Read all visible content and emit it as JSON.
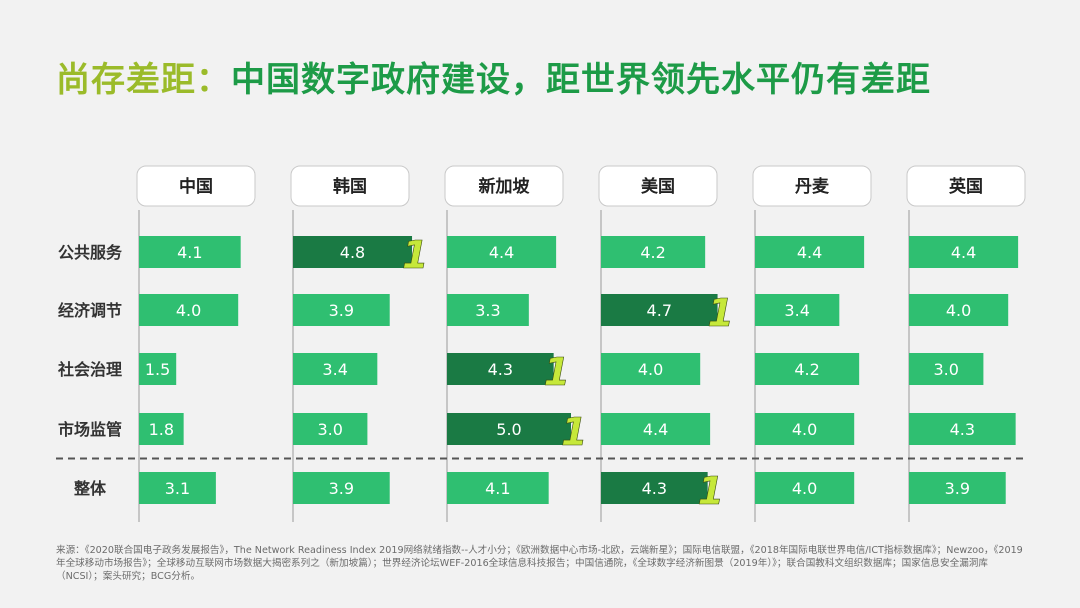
{
  "title_part1": "尚存差距：",
  "title_part2": "中国数字政府建设，距世界领先水平仍有差距",
  "source_note": "来源：《2020联合国电子政务发展报告》，The  Network  Readiness  Index  2019网络就绪指数--人才小分；《欧洲数据中心市场-北欧，云端新星》；国际电信联盟，《2018年国际电联世界电信/ICT指标数据库》；Newzoo，《2019年全球移动市场报告》；全球移动互联网市场数据大揭密系列之（新加坡篇）；世界经济论坛WEF-2016全球信息科技报告；中国信通院，《全球数字经济新图景（2019年）》；联合国教科文组织数据库；国家信息安全漏洞库（NCSI）；案头研究；BCG分析。",
  "colors": {
    "bar": "#2fbf71",
    "leader_bar": "#1a7a44",
    "mark": "#c6e83a",
    "title_accent": "#9bbb2a",
    "title_main": "#1d9b47"
  },
  "chart_data": {
    "type": "bar",
    "orientation": "horizontal",
    "layout": "small-multiples",
    "countries": [
      "中国",
      "韩国",
      "新加坡",
      "美国",
      "丹麦",
      "英国"
    ],
    "categories": [
      "公共服务",
      "经济调节",
      "社会治理",
      "市场监管",
      "整体"
    ],
    "values": [
      [
        4.1,
        4.0,
        1.5,
        1.8,
        3.1
      ],
      [
        4.8,
        3.9,
        3.4,
        3.0,
        3.9
      ],
      [
        4.4,
        3.3,
        4.3,
        5.0,
        4.1
      ],
      [
        4.2,
        4.7,
        4.0,
        4.4,
        4.3
      ],
      [
        4.4,
        3.4,
        4.2,
        4.0,
        4.0
      ],
      [
        4.4,
        4.0,
        3.0,
        4.3,
        3.9
      ]
    ],
    "value_labels": [
      [
        "4.1",
        "4.0",
        "1.5",
        "1.8",
        "3.1"
      ],
      [
        "4.8",
        "3.9",
        "3.4",
        "3.0",
        "3.9"
      ],
      [
        "4.4",
        "3.3",
        "4.3",
        "5.0",
        "4.1"
      ],
      [
        "4.2",
        "4.7",
        "4.0",
        "4.4",
        "4.3"
      ],
      [
        "4.4",
        "3.4",
        "4.2",
        "4.0",
        "4.0"
      ],
      [
        "4.4",
        "4.0",
        "3.0",
        "4.3",
        "3.9"
      ]
    ],
    "leader_marks": [
      {
        "country": "韩国",
        "category": "公共服务",
        "label": "1"
      },
      {
        "country": "美国",
        "category": "经济调节",
        "label": "1"
      },
      {
        "country": "新加坡",
        "category": "社会治理",
        "label": "1"
      },
      {
        "country": "新加坡",
        "category": "市场监管",
        "label": "1"
      },
      {
        "country": "美国",
        "category": "整体",
        "label": "1"
      }
    ],
    "xlim": [
      0,
      5
    ],
    "grid": false,
    "separator_before": "整体"
  }
}
